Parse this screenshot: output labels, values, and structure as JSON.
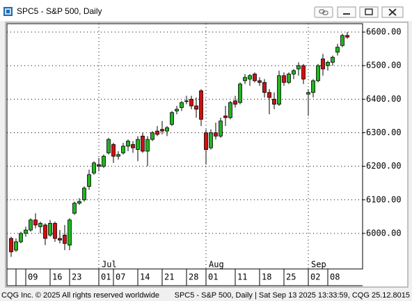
{
  "window": {
    "title": "SPC5 - S&P 500, Daily",
    "footer_left": "CQG Inc. © 2025 All rights reserved worldwide",
    "footer_right": "SPC5 - S&P 500, Daily | Sat Sep 13 2025 13:33:59, CQG 25.12.8015"
  },
  "chart_data": {
    "type": "candlestick",
    "categories": [
      null,
      null,
      null,
      "09",
      null,
      null,
      null,
      null,
      "16",
      null,
      null,
      null,
      "23",
      null,
      null,
      null,
      null,
      null,
      "01",
      null,
      null,
      "07",
      null,
      null,
      null,
      null,
      "14",
      null,
      null,
      null,
      null,
      "21",
      null,
      null,
      null,
      null,
      "28",
      null,
      null,
      null,
      "01",
      null,
      null,
      null,
      null,
      null,
      "11",
      null,
      null,
      null,
      null,
      "18",
      null,
      null,
      null,
      null,
      "25",
      null,
      null,
      null,
      null,
      "02",
      null,
      null,
      null,
      "08",
      null,
      null,
      null,
      null
    ],
    "months": [
      null,
      null,
      null,
      null,
      null,
      null,
      null,
      null,
      null,
      null,
      null,
      null,
      null,
      null,
      null,
      null,
      null,
      null,
      "Jul",
      null,
      null,
      null,
      null,
      null,
      null,
      null,
      null,
      null,
      null,
      null,
      null,
      null,
      null,
      null,
      null,
      null,
      null,
      null,
      null,
      null,
      "Aug",
      null,
      null,
      null,
      null,
      null,
      null,
      null,
      null,
      null,
      null,
      null,
      null,
      null,
      null,
      null,
      null,
      null,
      null,
      null,
      null,
      "Sep",
      null,
      null,
      null,
      null,
      null,
      null,
      null,
      null
    ],
    "open": [
      5985,
      5950,
      5975,
      6000,
      6010,
      6040,
      6020,
      6025,
      5995,
      6030,
      5985,
      5995,
      5965,
      6060,
      6090,
      6100,
      6140,
      6180,
      6205,
      6200,
      6240,
      6265,
      6230,
      6240,
      6260,
      6265,
      6250,
      6290,
      6245,
      6280,
      6305,
      6310,
      6305,
      6325,
      6365,
      6375,
      6395,
      6400,
      6380,
      6425,
      6300,
      6255,
      6300,
      6290,
      6350,
      6345,
      6395,
      6390,
      6455,
      6460,
      6475,
      6455,
      6450,
      6420,
      6400,
      6385,
      6470,
      6450,
      6475,
      6490,
      6500,
      6415,
      6420,
      6455,
      6520,
      6500,
      6510,
      6540,
      6560,
      6590
    ],
    "high": [
      5990,
      5985,
      6005,
      6020,
      6045,
      6060,
      6035,
      6030,
      6040,
      6035,
      6010,
      6025,
      6045,
      6095,
      6105,
      6140,
      6190,
      6215,
      6225,
      6235,
      6285,
      6270,
      6245,
      6270,
      6280,
      6275,
      6290,
      6300,
      6290,
      6305,
      6320,
      6335,
      6320,
      6365,
      6380,
      6395,
      6410,
      6410,
      6405,
      6430,
      6310,
      6310,
      6330,
      6345,
      6380,
      6395,
      6410,
      6450,
      6475,
      6475,
      6480,
      6465,
      6460,
      6430,
      6420,
      6485,
      6480,
      6480,
      6490,
      6510,
      6505,
      6430,
      6460,
      6505,
      6535,
      6515,
      6530,
      6565,
      6595,
      6600
    ],
    "low": [
      5930,
      5945,
      5970,
      5990,
      6005,
      6015,
      6000,
      5965,
      5990,
      5975,
      5970,
      5950,
      5950,
      6055,
      6085,
      6095,
      6130,
      6175,
      6185,
      6195,
      6235,
      6210,
      6220,
      6235,
      6245,
      6240,
      6215,
      6240,
      6200,
      6275,
      6290,
      6295,
      6290,
      6320,
      6355,
      6365,
      6385,
      6370,
      6345,
      6320,
      6205,
      6250,
      6280,
      6285,
      6320,
      6340,
      6375,
      6385,
      6445,
      6440,
      6450,
      6440,
      6405,
      6355,
      6370,
      6380,
      6440,
      6445,
      6460,
      6470,
      6445,
      6350,
      6405,
      6450,
      6470,
      6485,
      6500,
      6530,
      6555,
      6580
    ],
    "close": [
      5945,
      5975,
      6000,
      6010,
      6040,
      6025,
      6030,
      5985,
      6030,
      5985,
      5980,
      5970,
      6040,
      6090,
      6095,
      6135,
      6175,
      6210,
      6200,
      6230,
      6280,
      6230,
      6235,
      6260,
      6275,
      6255,
      6280,
      6245,
      6280,
      6300,
      6295,
      6305,
      6315,
      6360,
      6370,
      6390,
      6395,
      6380,
      6370,
      6340,
      6250,
      6300,
      6290,
      6335,
      6345,
      6390,
      6385,
      6445,
      6465,
      6470,
      6455,
      6450,
      6420,
      6405,
      6385,
      6470,
      6450,
      6475,
      6485,
      6500,
      6460,
      6420,
      6455,
      6500,
      6490,
      6510,
      6525,
      6555,
      6590,
      6585
    ],
    "up_color": "#22b422",
    "down_color": "#cc1111",
    "ylim": [
      5894,
      6625
    ],
    "yticks": [
      {
        "value": 6000,
        "label": "6000.00"
      },
      {
        "value": 6100,
        "label": "6100.00"
      },
      {
        "value": 6200,
        "label": "6200.00"
      },
      {
        "value": 6300,
        "label": "6300.00"
      },
      {
        "value": 6400,
        "label": "6400.00"
      },
      {
        "value": 6500,
        "label": "6500.00"
      },
      {
        "value": 6600,
        "label": "6600.00"
      }
    ],
    "grid": true
  }
}
